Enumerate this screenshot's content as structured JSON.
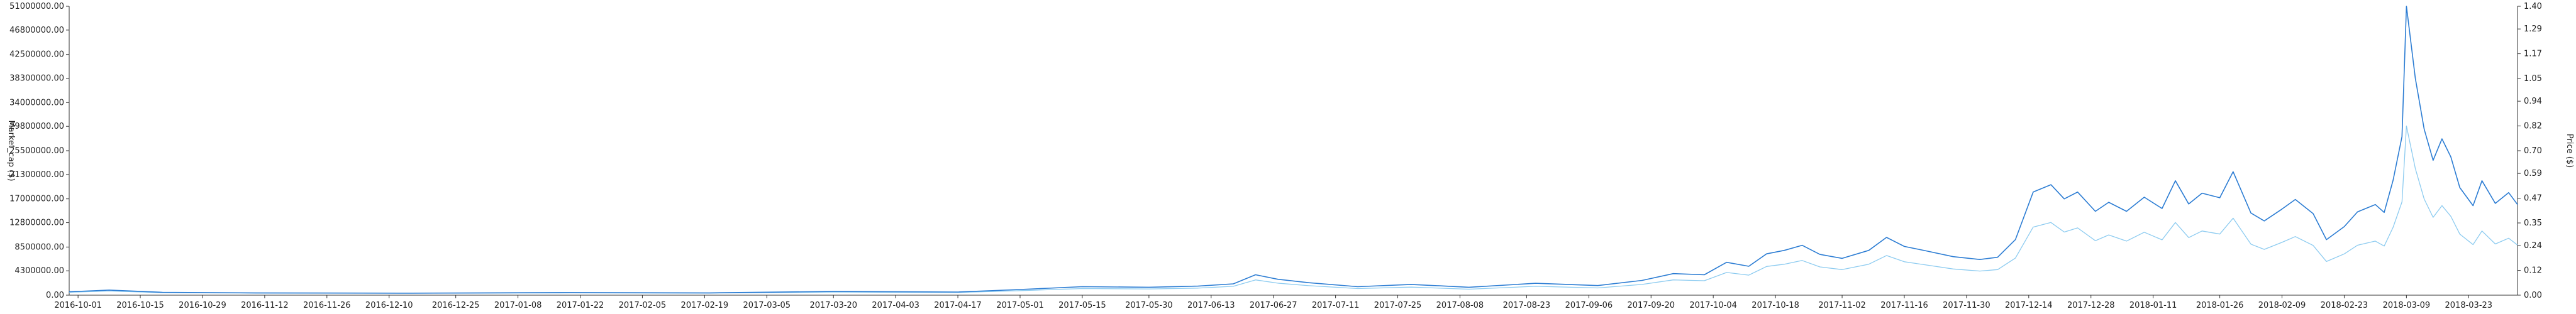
{
  "chart_data": {
    "type": "line",
    "title": "",
    "left_axis": {
      "label": "Market_cap ($)",
      "ticks": [
        "0.00",
        "4300000.00",
        "8500000.00",
        "12800000.00",
        "17000000.00",
        "21300000.00",
        "25500000.00",
        "29800000.00",
        "34000000.00",
        "38300000.00",
        "42500000.00",
        "46800000.00",
        "51000000.00"
      ],
      "ylim": [
        0,
        51000000
      ]
    },
    "right_axis": {
      "label": "Price ($)",
      "ticks": [
        "0.00",
        "0.12",
        "0.24",
        "0.35",
        "0.47",
        "0.59",
        "0.70",
        "0.82",
        "0.94",
        "1.05",
        "1.17",
        "1.29",
        "1.40"
      ],
      "ylim": [
        0,
        1.4
      ]
    },
    "x_ticks": [
      "2016-10-01",
      "2016-10-15",
      "2016-10-29",
      "2016-11-12",
      "2016-11-26",
      "2016-12-10",
      "2016-12-25",
      "2017-01-08",
      "2017-01-22",
      "2017-02-05",
      "2017-02-19",
      "2017-03-05",
      "2017-03-20",
      "2017-04-03",
      "2017-04-17",
      "2017-05-01",
      "2017-05-15",
      "2017-05-30",
      "2017-06-13",
      "2017-06-27",
      "2017-07-11",
      "2017-07-25",
      "2017-08-08",
      "2017-08-23",
      "2017-09-06",
      "2017-09-20",
      "2017-10-04",
      "2017-10-18",
      "2017-11-02",
      "2017-11-16",
      "2017-11-30",
      "2017-12-14",
      "2017-12-28",
      "2018-01-11",
      "2018-01-26",
      "2018-02-09",
      "2018-02-23",
      "2018-03-09",
      "2018-03-23"
    ],
    "x_range": [
      "2016-09-29",
      "2018-04-03"
    ],
    "grid": false,
    "colors": {
      "market_cap": "#2b7cd3",
      "price": "#8ccbf0"
    },
    "series": [
      {
        "key": "market_cap",
        "axis": "left",
        "points": [
          [
            "2016-09-29",
            600000
          ],
          [
            "2016-10-08",
            900000
          ],
          [
            "2016-10-20",
            500000
          ],
          [
            "2016-11-10",
            400000
          ],
          [
            "2016-12-15",
            350000
          ],
          [
            "2017-01-20",
            450000
          ],
          [
            "2017-02-20",
            400000
          ],
          [
            "2017-03-20",
            650000
          ],
          [
            "2017-04-17",
            550000
          ],
          [
            "2017-05-01",
            1000000
          ],
          [
            "2017-05-15",
            1500000
          ],
          [
            "2017-05-30",
            1400000
          ],
          [
            "2017-06-10",
            1600000
          ],
          [
            "2017-06-18",
            2000000
          ],
          [
            "2017-06-23",
            3600000
          ],
          [
            "2017-06-28",
            2800000
          ],
          [
            "2017-07-05",
            2200000
          ],
          [
            "2017-07-16",
            1500000
          ],
          [
            "2017-07-28",
            1900000
          ],
          [
            "2017-08-10",
            1400000
          ],
          [
            "2017-08-25",
            2100000
          ],
          [
            "2017-09-08",
            1700000
          ],
          [
            "2017-09-18",
            2600000
          ],
          [
            "2017-09-25",
            3800000
          ],
          [
            "2017-10-02",
            3600000
          ],
          [
            "2017-10-07",
            5800000
          ],
          [
            "2017-10-12",
            5100000
          ],
          [
            "2017-10-16",
            7300000
          ],
          [
            "2017-10-20",
            7900000
          ],
          [
            "2017-10-24",
            8800000
          ],
          [
            "2017-10-28",
            7200000
          ],
          [
            "2017-11-02",
            6500000
          ],
          [
            "2017-11-08",
            7900000
          ],
          [
            "2017-11-12",
            10200000
          ],
          [
            "2017-11-16",
            8600000
          ],
          [
            "2017-11-21",
            7800000
          ],
          [
            "2017-11-27",
            6800000
          ],
          [
            "2017-12-03",
            6300000
          ],
          [
            "2017-12-07",
            6700000
          ],
          [
            "2017-12-11",
            9800000
          ],
          [
            "2017-12-15",
            18200000
          ],
          [
            "2017-12-19",
            19500000
          ],
          [
            "2017-12-22",
            17000000
          ],
          [
            "2017-12-25",
            18200000
          ],
          [
            "2017-12-29",
            14800000
          ],
          [
            "2018-01-01",
            16400000
          ],
          [
            "2018-01-05",
            14800000
          ],
          [
            "2018-01-09",
            17300000
          ],
          [
            "2018-01-13",
            15300000
          ],
          [
            "2018-01-16",
            20200000
          ],
          [
            "2018-01-19",
            16100000
          ],
          [
            "2018-01-22",
            18000000
          ],
          [
            "2018-01-26",
            17200000
          ],
          [
            "2018-01-29",
            21800000
          ],
          [
            "2018-02-02",
            14500000
          ],
          [
            "2018-02-05",
            13100000
          ],
          [
            "2018-02-09",
            15200000
          ],
          [
            "2018-02-12",
            16900000
          ],
          [
            "2018-02-16",
            14400000
          ],
          [
            "2018-02-19",
            9800000
          ],
          [
            "2018-02-23",
            12100000
          ],
          [
            "2018-02-26",
            14700000
          ],
          [
            "2018-03-02",
            16000000
          ],
          [
            "2018-03-04",
            14600000
          ],
          [
            "2018-03-06",
            20300000
          ],
          [
            "2018-03-08",
            28000000
          ],
          [
            "2018-03-09",
            51000000
          ],
          [
            "2018-03-11",
            38300000
          ],
          [
            "2018-03-13",
            29300000
          ],
          [
            "2018-03-15",
            23800000
          ],
          [
            "2018-03-17",
            27600000
          ],
          [
            "2018-03-19",
            24400000
          ],
          [
            "2018-03-21",
            19000000
          ],
          [
            "2018-03-24",
            15800000
          ],
          [
            "2018-03-26",
            20200000
          ],
          [
            "2018-03-29",
            16200000
          ],
          [
            "2018-04-01",
            18100000
          ],
          [
            "2018-04-03",
            16000000
          ]
        ]
      },
      {
        "key": "price",
        "axis": "right",
        "points": [
          [
            "2016-09-29",
            0.014
          ],
          [
            "2016-10-08",
            0.02
          ],
          [
            "2016-10-20",
            0.012
          ],
          [
            "2016-11-10",
            0.01
          ],
          [
            "2016-12-15",
            0.009
          ],
          [
            "2017-01-20",
            0.011
          ],
          [
            "2017-02-20",
            0.01
          ],
          [
            "2017-03-20",
            0.015
          ],
          [
            "2017-04-17",
            0.013
          ],
          [
            "2017-05-01",
            0.022
          ],
          [
            "2017-05-15",
            0.032
          ],
          [
            "2017-05-30",
            0.03
          ],
          [
            "2017-06-10",
            0.034
          ],
          [
            "2017-06-18",
            0.043
          ],
          [
            "2017-06-23",
            0.074
          ],
          [
            "2017-06-28",
            0.058
          ],
          [
            "2017-07-05",
            0.046
          ],
          [
            "2017-07-16",
            0.032
          ],
          [
            "2017-07-28",
            0.039
          ],
          [
            "2017-08-10",
            0.029
          ],
          [
            "2017-08-25",
            0.043
          ],
          [
            "2017-09-08",
            0.035
          ],
          [
            "2017-09-18",
            0.052
          ],
          [
            "2017-09-25",
            0.074
          ],
          [
            "2017-10-02",
            0.07
          ],
          [
            "2017-10-07",
            0.11
          ],
          [
            "2017-10-12",
            0.097
          ],
          [
            "2017-10-16",
            0.139
          ],
          [
            "2017-10-20",
            0.15
          ],
          [
            "2017-10-24",
            0.168
          ],
          [
            "2017-10-28",
            0.137
          ],
          [
            "2017-11-02",
            0.124
          ],
          [
            "2017-11-08",
            0.15
          ],
          [
            "2017-11-12",
            0.192
          ],
          [
            "2017-11-16",
            0.162
          ],
          [
            "2017-11-21",
            0.146
          ],
          [
            "2017-11-27",
            0.127
          ],
          [
            "2017-12-03",
            0.117
          ],
          [
            "2017-12-07",
            0.124
          ],
          [
            "2017-12-11",
            0.18
          ],
          [
            "2017-12-15",
            0.33
          ],
          [
            "2017-12-19",
            0.352
          ],
          [
            "2017-12-22",
            0.306
          ],
          [
            "2017-12-25",
            0.326
          ],
          [
            "2017-12-29",
            0.264
          ],
          [
            "2018-01-01",
            0.292
          ],
          [
            "2018-01-05",
            0.262
          ],
          [
            "2018-01-09",
            0.305
          ],
          [
            "2018-01-13",
            0.268
          ],
          [
            "2018-01-16",
            0.352
          ],
          [
            "2018-01-19",
            0.279
          ],
          [
            "2018-01-22",
            0.311
          ],
          [
            "2018-01-26",
            0.296
          ],
          [
            "2018-01-29",
            0.373
          ],
          [
            "2018-02-02",
            0.247
          ],
          [
            "2018-02-05",
            0.222
          ],
          [
            "2018-02-09",
            0.256
          ],
          [
            "2018-02-12",
            0.284
          ],
          [
            "2018-02-16",
            0.241
          ],
          [
            "2018-02-19",
            0.163
          ],
          [
            "2018-02-23",
            0.2
          ],
          [
            "2018-02-26",
            0.242
          ],
          [
            "2018-03-02",
            0.262
          ],
          [
            "2018-03-04",
            0.238
          ],
          [
            "2018-03-06",
            0.329
          ],
          [
            "2018-03-08",
            0.452
          ],
          [
            "2018-03-09",
            0.82
          ],
          [
            "2018-03-11",
            0.614
          ],
          [
            "2018-03-13",
            0.466
          ],
          [
            "2018-03-15",
            0.377
          ],
          [
            "2018-03-17",
            0.434
          ],
          [
            "2018-03-19",
            0.382
          ],
          [
            "2018-03-21",
            0.296
          ],
          [
            "2018-03-24",
            0.245
          ],
          [
            "2018-03-26",
            0.311
          ],
          [
            "2018-03-29",
            0.248
          ],
          [
            "2018-04-01",
            0.276
          ],
          [
            "2018-04-03",
            0.243
          ]
        ]
      }
    ]
  }
}
